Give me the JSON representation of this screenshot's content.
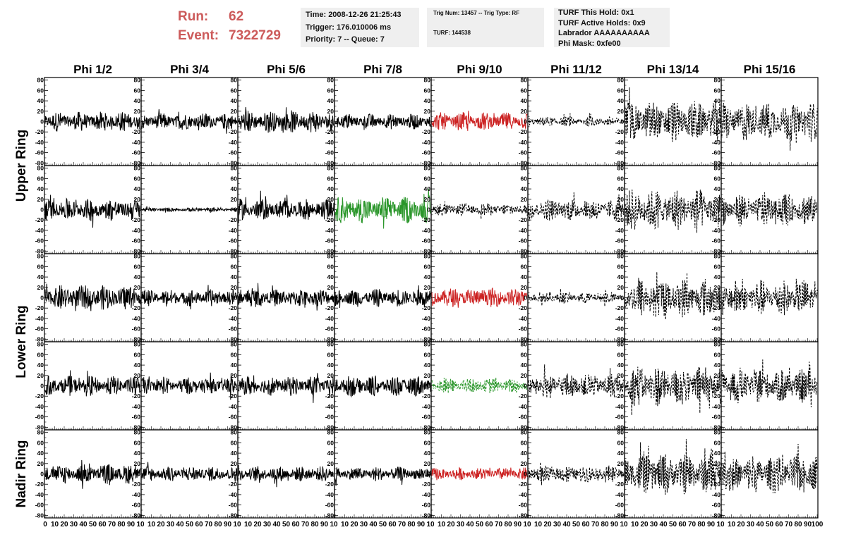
{
  "header": {
    "run_label": "Run:",
    "run_value": "62",
    "event_label": "Event:",
    "event_value": "7322729",
    "time_info": [
      "Time: 2008-12-26 21:25:43",
      "Trigger: 176.010006 ms",
      "Priority: 7 -- Queue: 7"
    ],
    "trig_info": [
      "Trig Num: 13457 -- Trig Type: RF",
      "TURF: 144538"
    ],
    "turf_info": [
      "TURF This Hold: 0x1",
      "TURF Active Holds: 0x9",
      "Labrador AAAAAAAAAA",
      "Phi Mask: 0xfe00"
    ]
  },
  "chart_data": {
    "type": "line",
    "columns": [
      "Phi 1/2",
      "Phi 3/4",
      "Phi 5/6",
      "Phi 7/8",
      "Phi 9/10",
      "Phi 11/12",
      "Phi 13/14",
      "Phi 15/16"
    ],
    "row_labels": [
      "Upper Ring",
      "Lower Ring",
      "Nadir Ring"
    ],
    "rows_per_label": [
      2,
      2,
      1
    ],
    "ylim": [
      -85,
      85
    ],
    "y_ticks": [
      -80,
      -60,
      -40,
      -20,
      0,
      20,
      40,
      60,
      80
    ],
    "xlim": [
      0,
      100
    ],
    "x_ticks": [
      0,
      10,
      20,
      30,
      40,
      50,
      60,
      70,
      80,
      90,
      100
    ],
    "x_tick_labels_first": [
      "0",
      "10",
      "20",
      "30",
      "40",
      "50",
      "60",
      "70",
      "80",
      "90",
      "10"
    ],
    "x_tick_labels_mid": [
      "10",
      "20",
      "30",
      "40",
      "50",
      "60",
      "70",
      "80",
      "90",
      "10"
    ],
    "x_tick_labels_last": [
      "10",
      "20",
      "30",
      "40",
      "50",
      "60",
      "70",
      "80",
      "90",
      "100"
    ],
    "colors": {
      "normal": "#000000",
      "triggered": "#cc2222",
      "coincident": "#2a962a"
    },
    "traces": [
      [
        {
          "amp": 14,
          "color": "normal",
          "dashed": false
        },
        {
          "amp": 12,
          "color": "normal",
          "dashed": false
        },
        {
          "amp": 16,
          "color": "normal",
          "dashed": false
        },
        {
          "amp": 11,
          "color": "normal",
          "dashed": false
        },
        {
          "amp": 13,
          "color": "triggered",
          "dashed": false
        },
        {
          "amp": 7,
          "color": "normal",
          "dashed": true
        },
        {
          "amp": 30,
          "color": "normal",
          "dashed": true
        },
        {
          "amp": 28,
          "color": "normal",
          "dashed": true
        }
      ],
      [
        {
          "amp": 16,
          "color": "normal",
          "dashed": false
        },
        {
          "amp": 3,
          "color": "normal",
          "dashed": false
        },
        {
          "amp": 15,
          "color": "normal",
          "dashed": false
        },
        {
          "amp": 19,
          "color": "coincident",
          "dashed": false
        },
        {
          "amp": 9,
          "color": "normal",
          "dashed": true
        },
        {
          "amp": 16,
          "color": "normal",
          "dashed": true
        },
        {
          "amp": 30,
          "color": "normal",
          "dashed": true
        },
        {
          "amp": 24,
          "color": "normal",
          "dashed": true
        }
      ],
      [
        {
          "amp": 18,
          "color": "normal",
          "dashed": false
        },
        {
          "amp": 12,
          "color": "normal",
          "dashed": false
        },
        {
          "amp": 13,
          "color": "normal",
          "dashed": false
        },
        {
          "amp": 13,
          "color": "normal",
          "dashed": false
        },
        {
          "amp": 14,
          "color": "triggered",
          "dashed": false
        },
        {
          "amp": 8,
          "color": "normal",
          "dashed": true
        },
        {
          "amp": 28,
          "color": "normal",
          "dashed": true
        },
        {
          "amp": 26,
          "color": "normal",
          "dashed": true
        }
      ],
      [
        {
          "amp": 14,
          "color": "normal",
          "dashed": false
        },
        {
          "amp": 12,
          "color": "normal",
          "dashed": false
        },
        {
          "amp": 14,
          "color": "normal",
          "dashed": false
        },
        {
          "amp": 15,
          "color": "normal",
          "dashed": false
        },
        {
          "amp": 11,
          "color": "coincident",
          "dashed": true
        },
        {
          "amp": 18,
          "color": "normal",
          "dashed": true
        },
        {
          "amp": 30,
          "color": "normal",
          "dashed": true
        },
        {
          "amp": 26,
          "color": "normal",
          "dashed": true
        }
      ],
      [
        {
          "amp": 14,
          "color": "normal",
          "dashed": false
        },
        {
          "amp": 11,
          "color": "normal",
          "dashed": false
        },
        {
          "amp": 11,
          "color": "normal",
          "dashed": false
        },
        {
          "amp": 10,
          "color": "normal",
          "dashed": false
        },
        {
          "amp": 9,
          "color": "triggered",
          "dashed": false
        },
        {
          "amp": 12,
          "color": "normal",
          "dashed": true
        },
        {
          "amp": 30,
          "color": "normal",
          "dashed": true
        },
        {
          "amp": 28,
          "color": "normal",
          "dashed": true
        }
      ]
    ]
  }
}
